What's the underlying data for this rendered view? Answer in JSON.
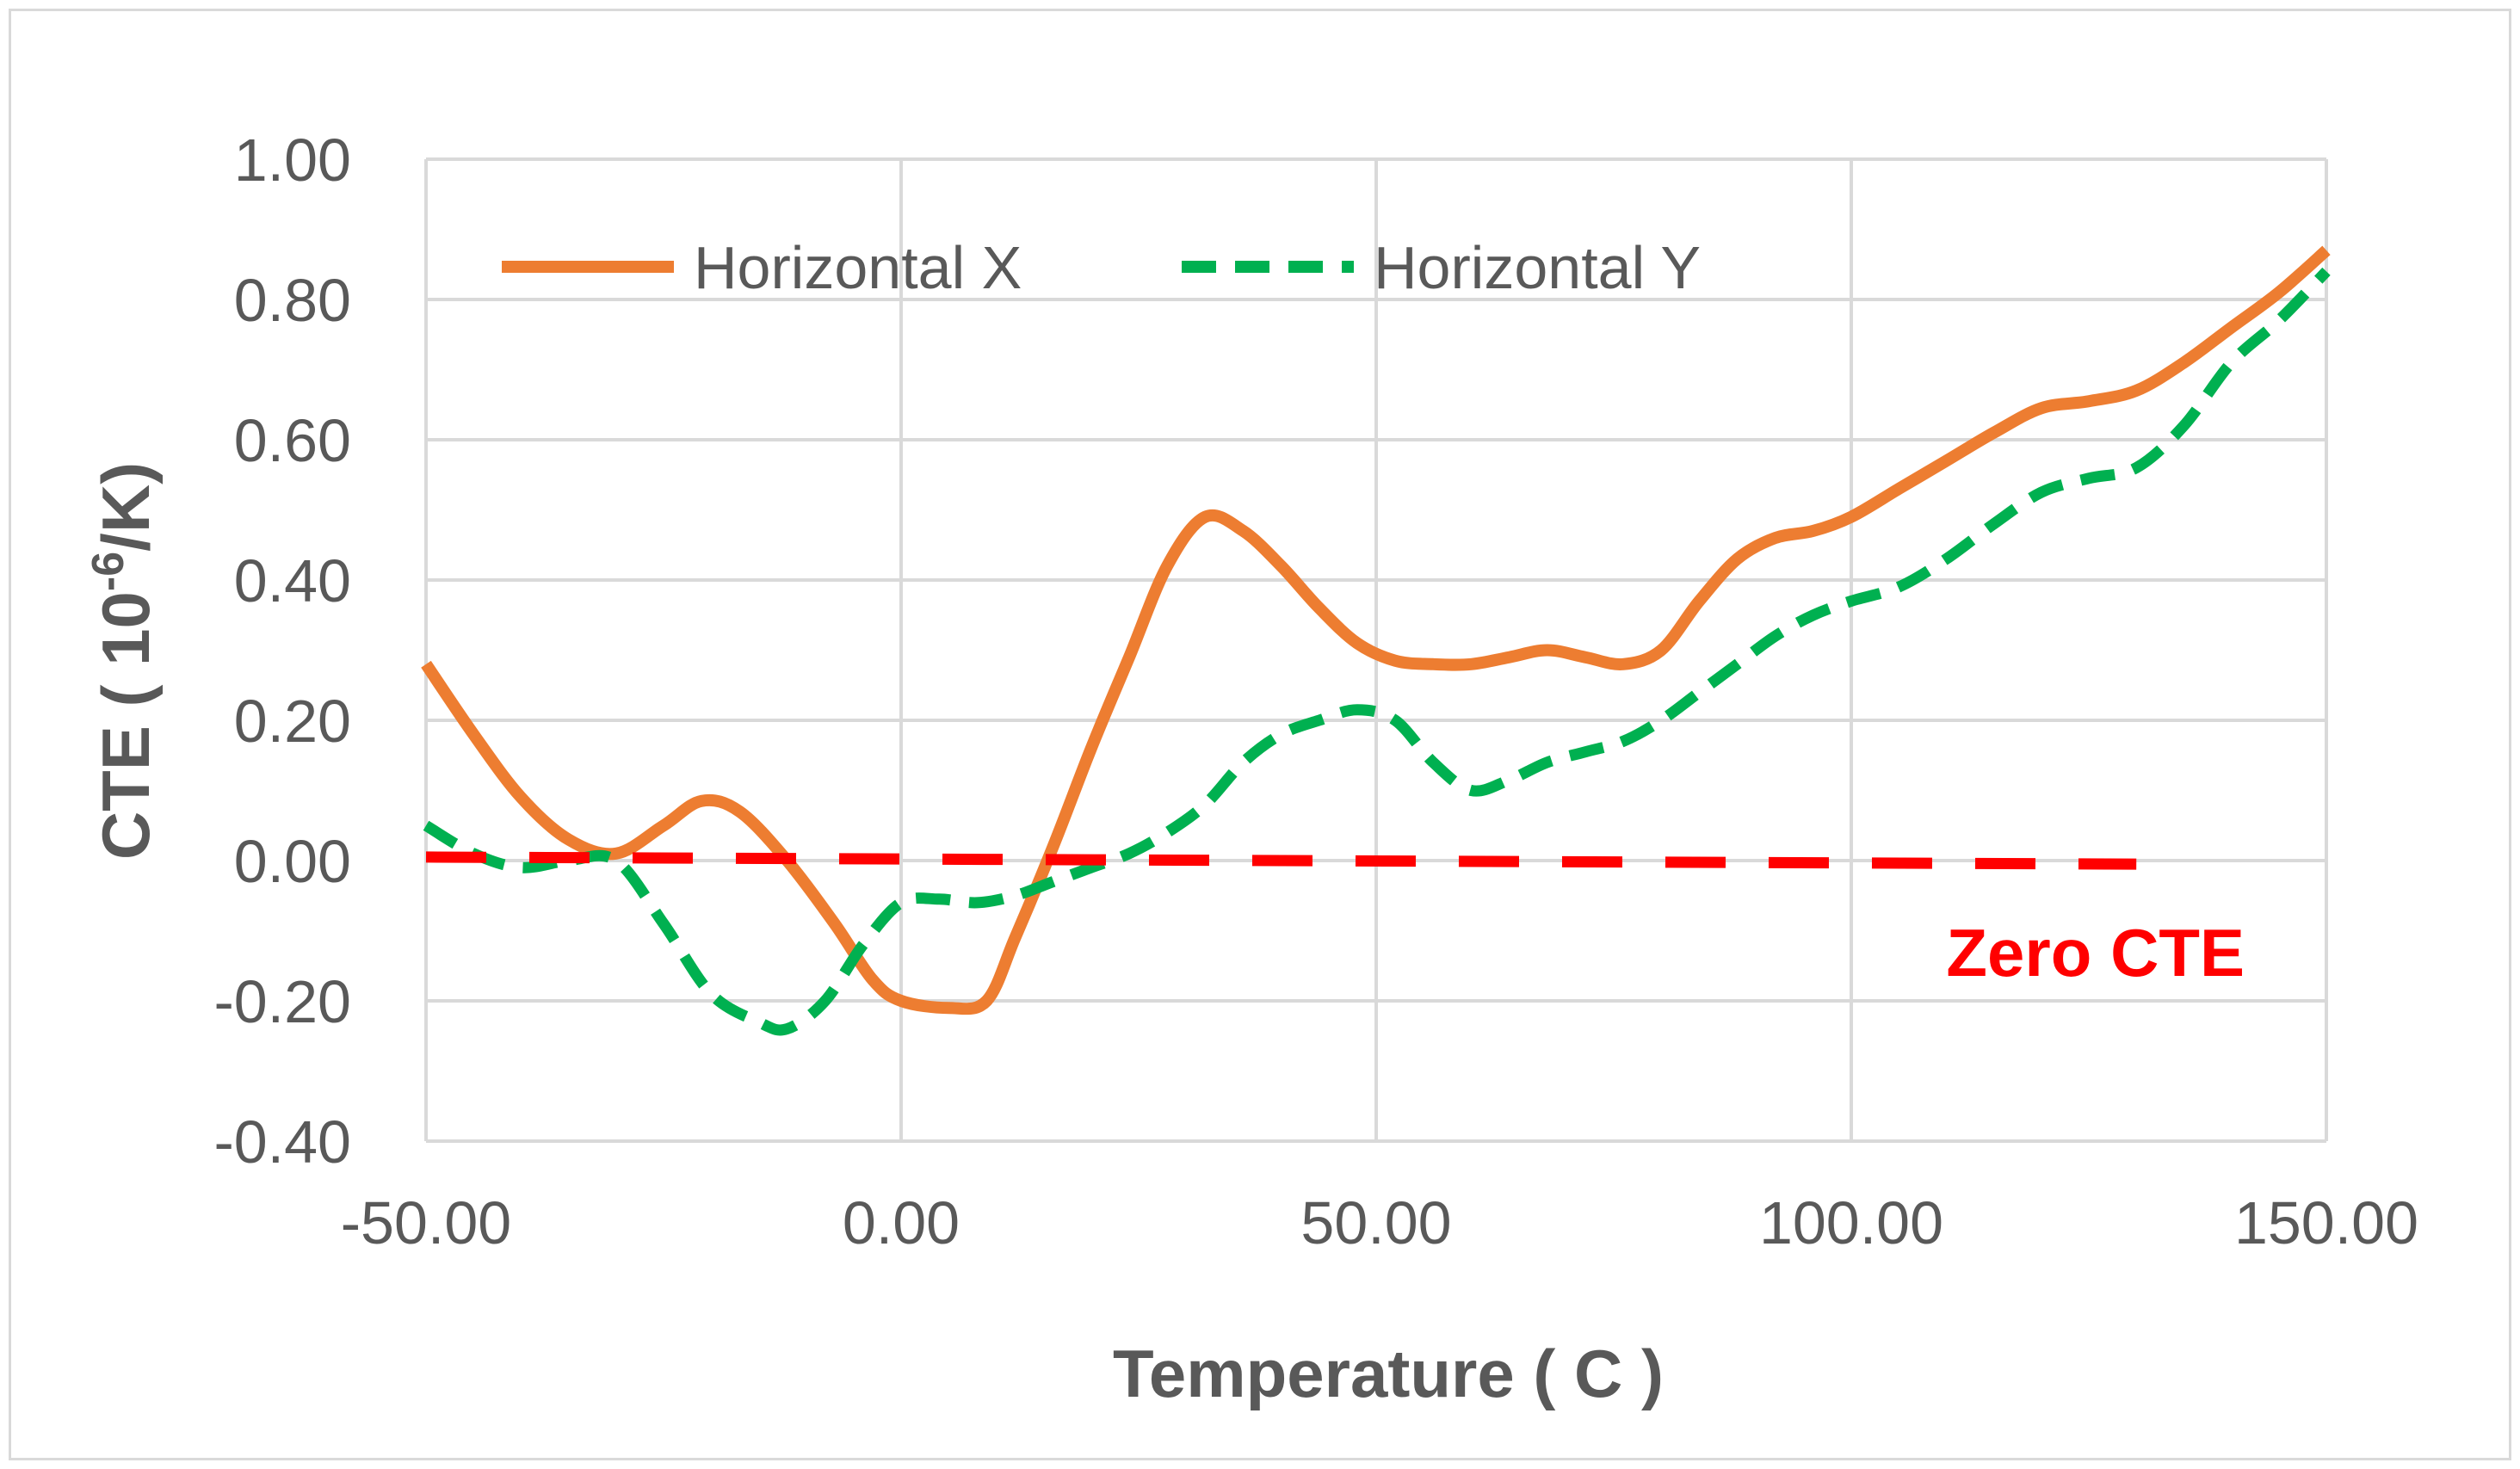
{
  "chart_data": {
    "type": "line",
    "title": "",
    "xlabel": "Temperature ( C )",
    "ylabel_parts": [
      "CTE ( 10",
      "-6",
      "/K)"
    ],
    "xlim": [
      -50,
      150
    ],
    "ylim": [
      -0.4,
      1.0
    ],
    "x_ticks": [
      -50,
      0,
      50,
      100,
      150
    ],
    "x_tick_labels": [
      "-50.00",
      "0.00",
      "50.00",
      "100.00",
      "150.00"
    ],
    "y_ticks": [
      -0.4,
      -0.2,
      0,
      0.2,
      0.4,
      0.6,
      0.8,
      1.0
    ],
    "y_tick_labels": [
      "-0.40",
      "-0.20",
      "0.00",
      "0.20",
      "0.40",
      "0.60",
      "0.80",
      "1.00"
    ],
    "grid": true,
    "legend_position": "top-left",
    "series": [
      {
        "name": "Horizontal X",
        "color": "#ed7d31",
        "style": "solid",
        "x": [
          -50,
          -45,
          -40,
          -35,
          -30,
          -25,
          -21,
          -17,
          -12,
          -7,
          -3,
          0,
          5,
          9,
          12,
          16,
          20,
          24,
          28,
          32,
          36,
          40,
          44,
          48,
          52,
          56,
          60,
          64,
          68,
          72,
          76,
          80,
          84,
          88,
          92,
          96,
          100,
          105,
          110,
          115,
          120,
          125,
          130,
          135,
          140,
          145,
          150
        ],
        "y": [
          0.28,
          0.18,
          0.09,
          0.03,
          0.01,
          0.05,
          0.085,
          0.07,
          0.0,
          -0.09,
          -0.17,
          -0.2,
          -0.21,
          -0.2,
          -0.11,
          0.02,
          0.16,
          0.29,
          0.42,
          0.49,
          0.47,
          0.42,
          0.36,
          0.31,
          0.285,
          0.28,
          0.28,
          0.29,
          0.3,
          0.29,
          0.28,
          0.3,
          0.37,
          0.43,
          0.46,
          0.47,
          0.49,
          0.53,
          0.57,
          0.61,
          0.645,
          0.655,
          0.67,
          0.71,
          0.76,
          0.81,
          0.87
        ]
      },
      {
        "name": "Horizontal Y",
        "color": "#00b050",
        "style": "dashed",
        "x": [
          -50,
          -45,
          -40,
          -35,
          -30,
          -25,
          -20,
          -15,
          -12,
          -8,
          -4,
          0,
          4,
          8,
          12,
          16,
          20,
          24,
          28,
          32,
          36,
          40,
          44,
          48,
          52,
          56,
          60,
          64,
          68,
          72,
          76,
          80,
          84,
          88,
          92,
          96,
          100,
          105,
          110,
          115,
          120,
          125,
          130,
          135,
          140,
          145,
          150
        ],
        "y": [
          0.05,
          0.01,
          -0.01,
          0.0,
          0.0,
          -0.09,
          -0.19,
          -0.23,
          -0.24,
          -0.2,
          -0.12,
          -0.06,
          -0.055,
          -0.06,
          -0.05,
          -0.03,
          -0.01,
          0.01,
          0.04,
          0.08,
          0.14,
          0.18,
          0.2,
          0.215,
          0.2,
          0.14,
          0.1,
          0.115,
          0.14,
          0.155,
          0.17,
          0.2,
          0.24,
          0.28,
          0.32,
          0.35,
          0.37,
          0.39,
          0.43,
          0.48,
          0.525,
          0.545,
          0.56,
          0.62,
          0.71,
          0.77,
          0.84
        ]
      },
      {
        "name": "",
        "color": "#ff0000",
        "style": "dashed",
        "x": [
          -50,
          130
        ],
        "y": [
          0.005,
          -0.005
        ]
      }
    ],
    "annotations": [
      {
        "text": "Zero CTE",
        "color": "#ff0000",
        "x": 110,
        "y": -0.13
      }
    ]
  }
}
